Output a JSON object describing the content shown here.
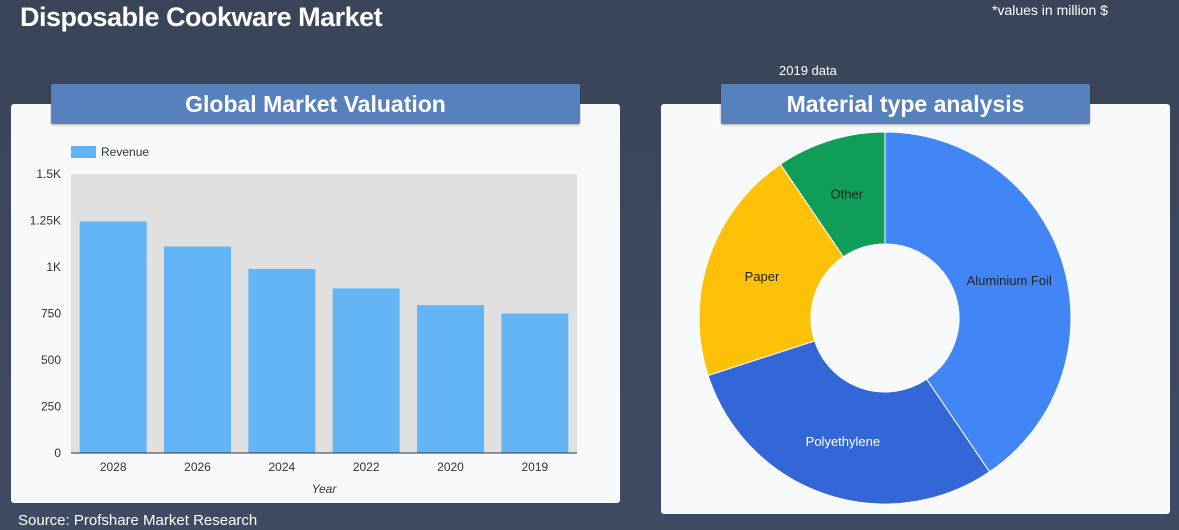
{
  "header": {
    "title": "Disposable Cookware Market",
    "units_note": "*values in million $",
    "year_note": "2019 data"
  },
  "left_panel": {
    "title": "Global Market Valuation"
  },
  "right_panel": {
    "title": "Material type analysis"
  },
  "footer": {
    "source": "Source: Profshare Market Research"
  },
  "colors": {
    "background": "#3d4860",
    "banner": "#5781bd",
    "bar": "#64b5f6",
    "plot_bg": "#e0e0e0"
  },
  "chart_data": [
    {
      "type": "bar",
      "title": "Global Market Valuation",
      "categories": [
        "2028",
        "2026",
        "2024",
        "2022",
        "2020",
        "2019"
      ],
      "series": [
        {
          "name": "Revenue",
          "values": [
            1245,
            1110,
            990,
            885,
            795,
            750
          ],
          "color": "#64b5f6"
        }
      ],
      "xlabel": "Year",
      "ylabel": "",
      "ylim": [
        0,
        1500
      ],
      "yticks": [
        0,
        250,
        500,
        750,
        1000,
        1250,
        1500
      ],
      "ytick_labels": [
        "0",
        "250",
        "500",
        "750",
        "1K",
        "1.25K",
        "1.5K"
      ],
      "legend": "top-left",
      "grid": false
    },
    {
      "type": "pie",
      "title": "Material type analysis",
      "donut": true,
      "labels": [
        "Aluminium Foil",
        "Polyethylene",
        "Paper",
        "Other"
      ],
      "values": [
        40.5,
        29.5,
        20.5,
        9.5
      ],
      "colors": [
        "#4285f4",
        "#3366d6",
        "#ffc107",
        "#0f9d58"
      ],
      "label_colors": [
        "#222222",
        "#ffffff",
        "#222222",
        "#222222"
      ],
      "legend": "none"
    }
  ]
}
